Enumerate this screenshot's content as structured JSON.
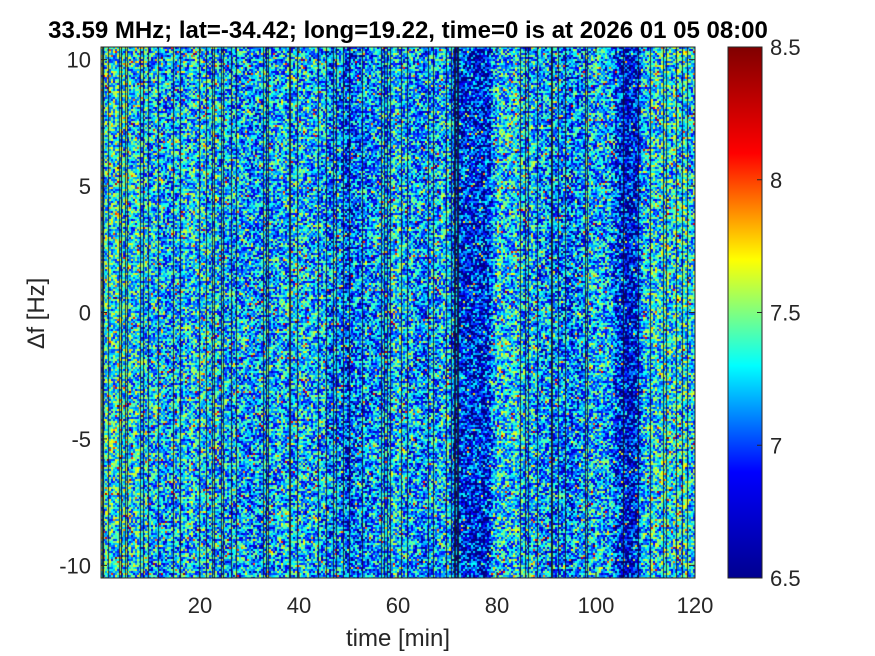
{
  "chart_data": {
    "type": "heatmap",
    "title": "33.59 MHz;  lat=-34.42; long=19.22, time=0 is at 2026 01 05 08:00",
    "xlabel": "time [min]",
    "ylabel": "∆f [Hz]",
    "xlim": [
      0,
      120
    ],
    "ylim": [
      -10.5,
      10.5
    ],
    "x_ticks": [
      20,
      40,
      60,
      80,
      100,
      120
    ],
    "y_ticks": [
      -10,
      -5,
      0,
      5,
      10
    ],
    "colorbar": {
      "colormap": "jet",
      "clim": [
        6.5,
        8.5
      ],
      "ticks": [
        6.5,
        7,
        7.5,
        8,
        8.5
      ]
    },
    "colormap_colors": [
      "#00008f",
      "#0000ff",
      "#00ffff",
      "#ffff00",
      "#ff0000",
      "#800000"
    ],
    "time_profile": {
      "note_free": true,
      "times": [
        0,
        5,
        10,
        15,
        20,
        25,
        30,
        35,
        40,
        45,
        50,
        55,
        60,
        65,
        70,
        72,
        75,
        78,
        80,
        85,
        90,
        95,
        100,
        103,
        105,
        108,
        110,
        115,
        120
      ],
      "mean_level": [
        7.25,
        7.25,
        7.15,
        7.1,
        7.2,
        7.15,
        7.05,
        7.1,
        7.15,
        7.1,
        6.9,
        7.05,
        7.15,
        7.05,
        7.15,
        6.8,
        6.75,
        6.75,
        7.2,
        7.15,
        7.05,
        6.95,
        7.15,
        7.05,
        6.7,
        6.7,
        7.2,
        7.25,
        7.2
      ]
    }
  }
}
